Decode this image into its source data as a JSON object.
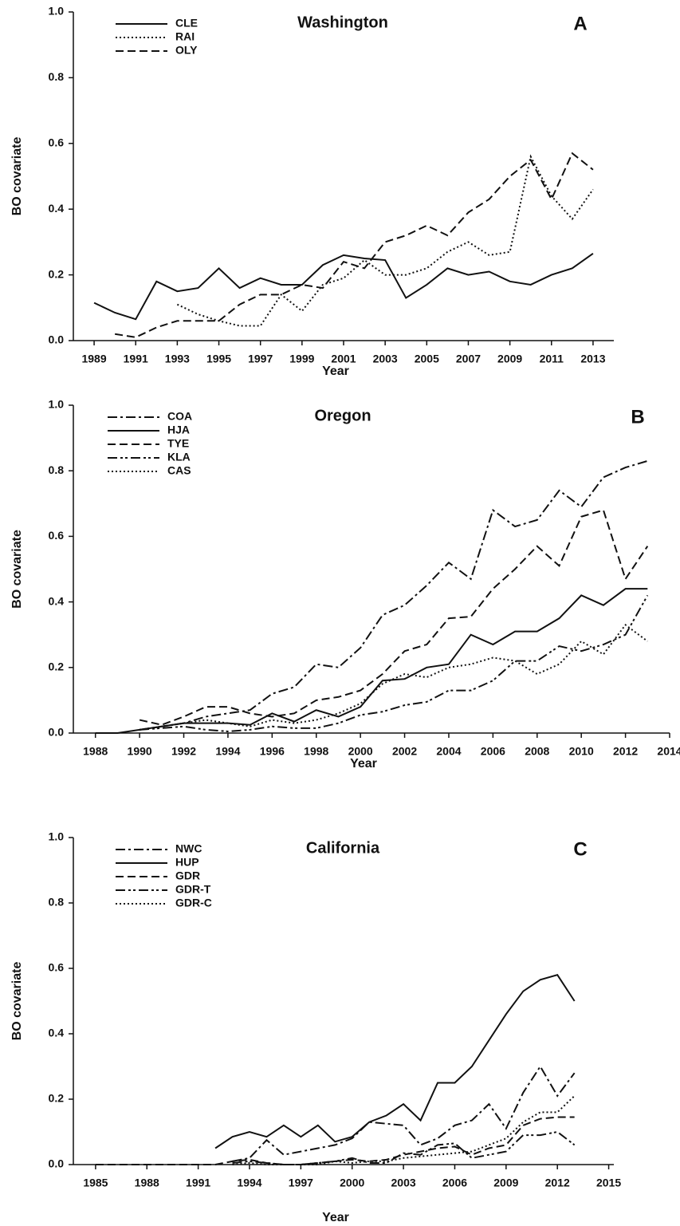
{
  "chart_data": [
    {
      "type": "line",
      "title": "Washington",
      "label": "A",
      "x_label": "Year",
      "y_label": "BO covariate",
      "x": [
        1989,
        1990,
        1991,
        1992,
        1993,
        1994,
        1995,
        1996,
        1997,
        1998,
        1999,
        2000,
        2001,
        2002,
        2003,
        2004,
        2005,
        2006,
        2007,
        2008,
        2009,
        2010,
        2011,
        2012,
        2013
      ],
      "series": [
        {
          "name": "CLE",
          "color": "#111111",
          "dash": "solid",
          "values": [
            0.115,
            0.085,
            0.065,
            0.18,
            0.15,
            0.16,
            0.22,
            0.16,
            0.19,
            0.17,
            0.17,
            0.23,
            0.26,
            0.25,
            0.245,
            0.13,
            0.17,
            0.22,
            0.2,
            0.21,
            0.18,
            0.17,
            0.2,
            0.22,
            0.265
          ]
        },
        {
          "name": "RAI",
          "color": "#111111",
          "dash": "dotted",
          "values": [
            null,
            null,
            null,
            null,
            0.11,
            0.08,
            0.06,
            0.045,
            0.045,
            0.14,
            0.09,
            0.17,
            0.19,
            0.245,
            0.2,
            0.2,
            0.22,
            0.27,
            0.3,
            0.26,
            0.27,
            0.56,
            0.44,
            0.37,
            0.46
          ]
        },
        {
          "name": "OLY",
          "color": "#111111",
          "dash": "dashed",
          "values": [
            null,
            0.02,
            0.01,
            0.04,
            0.06,
            0.06,
            0.06,
            0.11,
            0.14,
            0.14,
            0.17,
            0.16,
            0.24,
            0.22,
            0.3,
            0.32,
            0.35,
            0.32,
            0.39,
            0.43,
            0.5,
            0.55,
            0.43,
            0.57,
            0.52
          ]
        }
      ],
      "xlim": [
        1988,
        2014
      ],
      "xticks": [
        1989,
        1991,
        1993,
        1995,
        1997,
        1999,
        2001,
        2003,
        2005,
        2007,
        2009,
        2011,
        2013
      ],
      "ylim": [
        0,
        1
      ],
      "yticks": [
        {
          "value": 0,
          "label": "0.0"
        },
        {
          "value": 0.2,
          "label": "0.2"
        },
        {
          "value": 0.4,
          "label": "0.4"
        },
        {
          "value": 0.6,
          "label": "0.6"
        },
        {
          "value": 0.8,
          "label": "0.8"
        },
        {
          "value": 1,
          "label": "1.0"
        }
      ],
      "legend": "upper left"
    },
    {
      "type": "line",
      "title": "Oregon",
      "label": "B",
      "x_label": "Year",
      "y_label": "BO covariate",
      "x": [
        1988,
        1989,
        1990,
        1991,
        1992,
        1993,
        1994,
        1995,
        1996,
        1997,
        1998,
        1999,
        2000,
        2001,
        2002,
        2003,
        2004,
        2005,
        2006,
        2007,
        2008,
        2009,
        2010,
        2011,
        2012,
        2013
      ],
      "series": [
        {
          "name": "COA",
          "color": "#111111",
          "dash": "dashdot",
          "values": [
            null,
            null,
            0.01,
            0.02,
            0.03,
            0.05,
            0.06,
            0.07,
            0.12,
            0.14,
            0.21,
            0.2,
            0.26,
            0.36,
            0.39,
            0.45,
            0.52,
            0.47,
            0.68,
            0.63,
            0.65,
            0.74,
            0.69,
            0.78,
            0.81,
            0.83
          ]
        },
        {
          "name": "HJA",
          "color": "#111111",
          "dash": "solid",
          "values": [
            0,
            0,
            0.01,
            0.02,
            0.03,
            0.03,
            0.03,
            0.025,
            0.06,
            0.035,
            0.07,
            0.05,
            0.08,
            0.16,
            0.165,
            0.2,
            0.21,
            0.3,
            0.27,
            0.31,
            0.31,
            0.35,
            0.42,
            0.39,
            0.44,
            0.44
          ]
        },
        {
          "name": "TYE",
          "color": "#111111",
          "dash": "dashed",
          "values": [
            null,
            null,
            0.04,
            0.025,
            0.05,
            0.08,
            0.08,
            0.06,
            0.05,
            0.06,
            0.1,
            0.11,
            0.13,
            0.18,
            0.25,
            0.27,
            0.35,
            0.355,
            0.44,
            0.5,
            0.57,
            0.51,
            0.66,
            0.68,
            0.47,
            0.57
          ]
        },
        {
          "name": "KLA",
          "color": "#111111",
          "dash": "dashdotdot",
          "values": [
            null,
            null,
            0.01,
            0.015,
            0.02,
            0.01,
            0.005,
            0.01,
            0.02,
            0.015,
            0.015,
            0.03,
            0.055,
            0.065,
            0.085,
            0.095,
            0.13,
            0.13,
            0.16,
            0.22,
            0.22,
            0.265,
            0.25,
            0.27,
            0.3,
            0.42
          ]
        },
        {
          "name": "CAS",
          "color": "#111111",
          "dash": "dotted",
          "values": [
            null,
            null,
            0.01,
            0.02,
            0.03,
            0.04,
            0.03,
            0.02,
            0.04,
            0.03,
            0.04,
            0.06,
            0.09,
            0.15,
            0.18,
            0.17,
            0.2,
            0.21,
            0.23,
            0.22,
            0.18,
            0.21,
            0.28,
            0.24,
            0.33,
            0.28
          ]
        }
      ],
      "xlim": [
        1987,
        2014
      ],
      "xticks": [
        1988,
        1990,
        1992,
        1994,
        1996,
        1998,
        2000,
        2002,
        2004,
        2006,
        2008,
        2010,
        2012,
        2014
      ],
      "ylim": [
        0,
        1
      ],
      "yticks": [
        {
          "value": 0,
          "label": "0.0"
        },
        {
          "value": 0.2,
          "label": "0.2"
        },
        {
          "value": 0.4,
          "label": "0.4"
        },
        {
          "value": 0.6,
          "label": "0.6"
        },
        {
          "value": 0.8,
          "label": "0.8"
        },
        {
          "value": 1,
          "label": "1.0"
        }
      ],
      "legend": "upper left"
    },
    {
      "type": "line",
      "title": "California",
      "label": "C",
      "x_label": "Year",
      "y_label": "BO covariate",
      "x": [
        1985,
        1986,
        1987,
        1988,
        1989,
        1990,
        1991,
        1992,
        1993,
        1994,
        1995,
        1996,
        1997,
        1998,
        1999,
        2000,
        2001,
        2002,
        2003,
        2004,
        2005,
        2006,
        2007,
        2008,
        2009,
        2010,
        2011,
        2012,
        2013
      ],
      "series": [
        {
          "name": "NWC",
          "color": "#111111",
          "dash": "dashdot",
          "values": [
            null,
            null,
            null,
            null,
            null,
            null,
            null,
            null,
            0.01,
            0.02,
            0.075,
            0.03,
            0.04,
            0.05,
            0.06,
            0.08,
            0.13,
            0.125,
            0.12,
            0.06,
            0.08,
            0.12,
            0.135,
            0.185,
            0.11,
            0.22,
            0.3,
            0.21,
            0.28
          ]
        },
        {
          "name": "HUP",
          "color": "#111111",
          "dash": "solid",
          "values": [
            null,
            null,
            null,
            null,
            null,
            null,
            null,
            0.05,
            0.085,
            0.1,
            0.085,
            0.12,
            0.085,
            0.12,
            0.07,
            0.085,
            0.13,
            0.15,
            0.185,
            0.135,
            0.25,
            0.25,
            0.3,
            0.38,
            0.46,
            0.53,
            0.565,
            0.58,
            0.5
          ]
        },
        {
          "name": "GDR",
          "color": "#111111",
          "dash": "dashed",
          "values": [
            0,
            0,
            0,
            0,
            0,
            0,
            0,
            0,
            0.01,
            0.015,
            0.005,
            0,
            0,
            0.005,
            0.01,
            0.015,
            0.01,
            0.015,
            0.03,
            0.04,
            0.05,
            0.055,
            0.03,
            0.05,
            0.06,
            0.12,
            0.14,
            0.145,
            0.145
          ]
        },
        {
          "name": "GDR-T",
          "color": "#111111",
          "dash": "dashdotdot",
          "values": [
            null,
            null,
            null,
            null,
            null,
            null,
            null,
            null,
            0.005,
            0.01,
            0.005,
            0,
            0,
            0.005,
            0.01,
            0.02,
            0.005,
            0.005,
            0.035,
            0.03,
            0.06,
            0.065,
            0.02,
            0.03,
            0.04,
            0.09,
            0.09,
            0.1,
            0.06
          ]
        },
        {
          "name": "GDR-C",
          "color": "#111111",
          "dash": "dotted",
          "values": [
            null,
            null,
            null,
            null,
            null,
            null,
            null,
            null,
            0,
            0.005,
            0,
            0,
            0,
            0,
            0.01,
            0.005,
            0.01,
            0.01,
            0.02,
            0.025,
            0.03,
            0.035,
            0.04,
            0.06,
            0.08,
            0.13,
            0.16,
            0.16,
            0.21
          ]
        }
      ],
      "xlim": [
        1983.7,
        2015.3
      ],
      "xticks": [
        1985,
        1988,
        1991,
        1994,
        1997,
        2000,
        2003,
        2006,
        2009,
        2012,
        2015
      ],
      "ylim": [
        0,
        1
      ],
      "yticks": [
        {
          "value": 0,
          "label": "0.0"
        },
        {
          "value": 0.2,
          "label": "0.2"
        },
        {
          "value": 0.4,
          "label": "0.4"
        },
        {
          "value": 0.6,
          "label": "0.6"
        },
        {
          "value": 0.8,
          "label": "0.8"
        },
        {
          "value": 1,
          "label": "1.0"
        }
      ],
      "legend": "upper left"
    }
  ]
}
